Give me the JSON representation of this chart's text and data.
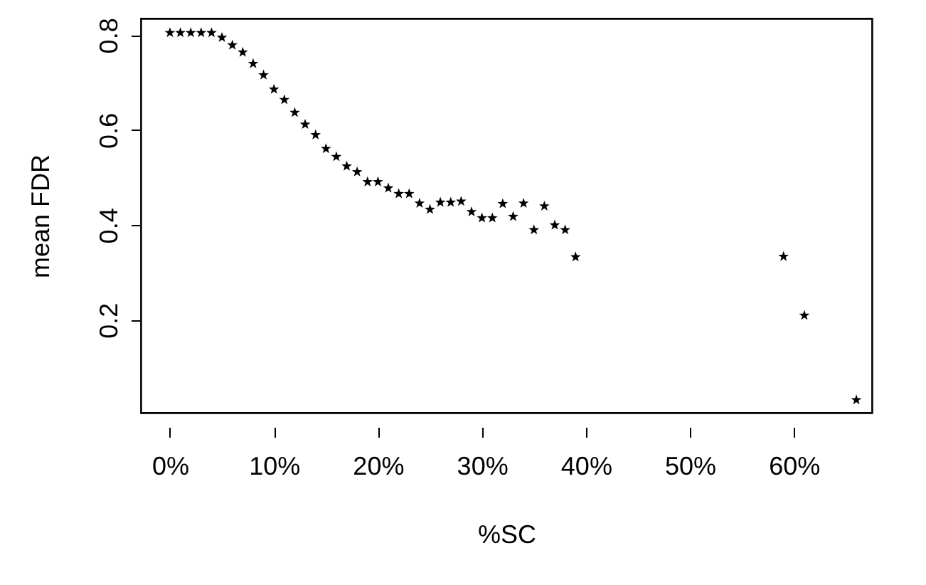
{
  "chart_data": {
    "type": "scatter",
    "xlabel": "%SC",
    "ylabel": "mean FDR",
    "marker": "star",
    "grid": false,
    "x": [
      0,
      1,
      2,
      3,
      4,
      5,
      6,
      7,
      8,
      9,
      10,
      11,
      12,
      13,
      14,
      15,
      16,
      17,
      18,
      19,
      20,
      21,
      22,
      23,
      24,
      25,
      26,
      27,
      28,
      29,
      30,
      31,
      32,
      33,
      34,
      35,
      36,
      37,
      38,
      39,
      59,
      61,
      66
    ],
    "series": [
      {
        "color": "#000000",
        "values": [
          0.805,
          0.805,
          0.805,
          0.805,
          0.805,
          0.795,
          0.779,
          0.764,
          0.74,
          0.716,
          0.686,
          0.664,
          0.637,
          0.612,
          0.59,
          0.561,
          0.544,
          0.524,
          0.512,
          0.491,
          0.491,
          0.478,
          0.466,
          0.466,
          0.446,
          0.433,
          0.448,
          0.448,
          0.45,
          0.428,
          0.415,
          0.415,
          0.445,
          0.418,
          0.446,
          0.39,
          0.44,
          0.4,
          0.39,
          0.333,
          0.334,
          0.21,
          0.032
        ]
      }
    ],
    "xlim": [
      -2.8,
      67.5
    ],
    "ylim": [
      0.005,
      0.835
    ],
    "xticks": [
      {
        "value": 0,
        "label": "0%"
      },
      {
        "value": 10,
        "label": "10%"
      },
      {
        "value": 20,
        "label": "20%"
      },
      {
        "value": 30,
        "label": "30%"
      },
      {
        "value": 40,
        "label": "40%"
      },
      {
        "value": 50,
        "label": "50%"
      },
      {
        "value": 60,
        "label": "60%"
      }
    ],
    "yticks": [
      0.2,
      0.4,
      0.6,
      0.8
    ]
  }
}
